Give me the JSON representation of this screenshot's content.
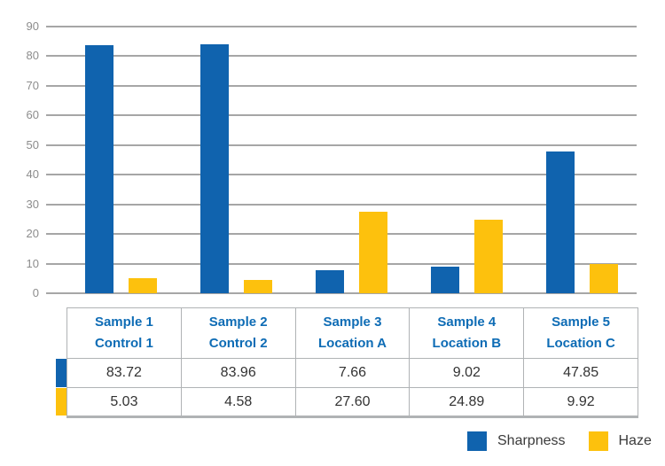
{
  "colors": {
    "sharpness_blue": "#1063ae",
    "haze_yellow": "#fdc10d",
    "gridline_gray": "#a6a6a6",
    "axis_label_gray": "#8c8c8c",
    "table_border_gray": "#b0b3b5",
    "header_text_blue": "#0e6cb5",
    "value_text": "#333333",
    "background": "#ffffff"
  },
  "chart_data": {
    "type": "bar",
    "categories": [
      "Sample 1 Control 1",
      "Sample 2 Control 2",
      "Sample 3 Location A",
      "Sample 4 Location B",
      "Sample 5 Location C"
    ],
    "series": [
      {
        "name": "Sharpness",
        "color": "#1063ae",
        "values": [
          83.72,
          83.96,
          7.66,
          9.02,
          47.85
        ]
      },
      {
        "name": "Haze",
        "color": "#fdc10d",
        "values": [
          5.03,
          4.58,
          27.6,
          24.89,
          9.92
        ]
      }
    ],
    "title": "",
    "xlabel": "",
    "ylabel": "",
    "ylim": [
      0,
      90
    ],
    "ytick_step": 10,
    "ytick_labels": [
      "90",
      "80",
      "70",
      "60",
      "50",
      "40",
      "30",
      "20",
      "10",
      "0"
    ],
    "grid": true,
    "legend_position": "bottom-right"
  },
  "table": {
    "columns": [
      {
        "line1": "Sample 1",
        "line2": "Control 1"
      },
      {
        "line1": "Sample 2",
        "line2": "Control 2"
      },
      {
        "line1": "Sample 3",
        "line2": "Location A"
      },
      {
        "line1": "Sample 4",
        "line2": "Location B"
      },
      {
        "line1": "Sample 5",
        "line2": "Location C"
      }
    ],
    "rows": [
      {
        "series": "Sharpness",
        "swatch_color": "#1063ae",
        "values": [
          "83.72",
          "83.96",
          "7.66",
          "9.02",
          "47.85"
        ]
      },
      {
        "series": "Haze",
        "swatch_color": "#fdc10d",
        "values": [
          "5.03",
          "4.58",
          "27.60",
          "24.89",
          "9.92"
        ]
      }
    ]
  },
  "legend": {
    "items": [
      {
        "label": "Sharpness",
        "color": "#1063ae"
      },
      {
        "label": "Haze",
        "color": "#fdc10d"
      }
    ]
  }
}
